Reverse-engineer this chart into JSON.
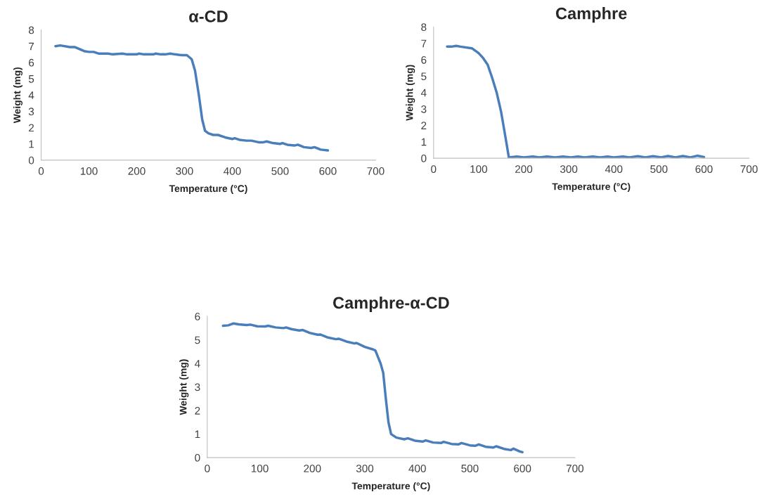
{
  "chart_data": [
    {
      "type": "line",
      "title": "α-CD",
      "xlabel": "Temperature (°C)",
      "ylabel": "Weight (mg)",
      "xlim": [
        0,
        700
      ],
      "xticks": [
        0,
        100,
        200,
        300,
        400,
        500,
        600,
        700
      ],
      "ylim": [
        0,
        8
      ],
      "yticks": [
        0,
        1,
        2,
        3,
        4,
        5,
        6,
        7,
        8
      ],
      "grid": false,
      "marker": "none",
      "line_style": "solid",
      "series": [
        {
          "color": "#4a7ebb",
          "x": [
            30,
            40,
            60,
            70,
            90,
            100,
            110,
            120,
            140,
            150,
            170,
            180,
            200,
            205,
            215,
            235,
            240,
            250,
            260,
            270,
            280,
            295,
            305,
            315,
            322,
            330,
            337,
            343,
            350,
            360,
            370,
            385,
            400,
            405,
            415,
            430,
            440,
            455,
            465,
            472,
            485,
            500,
            505,
            515,
            530,
            537,
            550,
            565,
            572,
            585,
            600
          ],
          "values": [
            7.0,
            7.05,
            6.95,
            6.95,
            6.7,
            6.65,
            6.65,
            6.55,
            6.55,
            6.5,
            6.55,
            6.5,
            6.5,
            6.55,
            6.5,
            6.5,
            6.55,
            6.5,
            6.5,
            6.55,
            6.5,
            6.45,
            6.45,
            6.2,
            5.5,
            4.0,
            2.5,
            1.8,
            1.65,
            1.55,
            1.55,
            1.4,
            1.3,
            1.35,
            1.25,
            1.2,
            1.2,
            1.1,
            1.1,
            1.15,
            1.05,
            1.0,
            1.05,
            0.95,
            0.9,
            0.95,
            0.8,
            0.75,
            0.8,
            0.65,
            0.6
          ]
        }
      ]
    },
    {
      "type": "line",
      "title": "Camphre",
      "xlabel": "Temperature (°C)",
      "ylabel": "Weight (mg)",
      "xlim": [
        0,
        700
      ],
      "xticks": [
        0,
        100,
        200,
        300,
        400,
        500,
        600,
        700
      ],
      "ylim": [
        0,
        8
      ],
      "yticks": [
        0,
        1,
        2,
        3,
        4,
        5,
        6,
        7,
        8
      ],
      "grid": false,
      "marker": "none",
      "line_style": "solid",
      "series": [
        {
          "color": "#4a7ebb",
          "x": [
            30,
            40,
            50,
            60,
            85,
            100,
            110,
            120,
            130,
            140,
            150,
            160,
            167,
            185,
            200,
            220,
            235,
            252,
            270,
            287,
            305,
            320,
            335,
            353,
            370,
            386,
            400,
            420,
            435,
            453,
            470,
            487,
            505,
            520,
            537,
            553,
            570,
            585,
            600
          ],
          "values": [
            6.8,
            6.8,
            6.85,
            6.8,
            6.7,
            6.4,
            6.1,
            5.7,
            4.9,
            4.0,
            2.8,
            1.2,
            0.05,
            0.1,
            0.05,
            0.1,
            0.05,
            0.1,
            0.05,
            0.1,
            0.05,
            0.1,
            0.05,
            0.1,
            0.05,
            0.1,
            0.05,
            0.1,
            0.05,
            0.12,
            0.05,
            0.12,
            0.05,
            0.13,
            0.05,
            0.13,
            0.05,
            0.15,
            0.07
          ]
        }
      ]
    },
    {
      "type": "line",
      "title": "Camphre-α-CD",
      "xlabel": "Temperature (°C)",
      "ylabel": "Weight (mg)",
      "xlim": [
        0,
        700
      ],
      "xticks": [
        0,
        100,
        200,
        300,
        400,
        500,
        600,
        700
      ],
      "ylim": [
        0,
        6
      ],
      "yticks": [
        0,
        1,
        2,
        3,
        4,
        5,
        6
      ],
      "grid": false,
      "marker": "none",
      "line_style": "solid",
      "series": [
        {
          "color": "#4a7ebb",
          "x": [
            30,
            40,
            50,
            60,
            75,
            82,
            95,
            110,
            116,
            130,
            145,
            150,
            160,
            175,
            182,
            195,
            210,
            215,
            230,
            245,
            250,
            265,
            280,
            284,
            300,
            315,
            320,
            330,
            335,
            340,
            345,
            350,
            360,
            375,
            382,
            395,
            410,
            416,
            430,
            445,
            450,
            465,
            478,
            484,
            500,
            510,
            517,
            530,
            545,
            550,
            565,
            578,
            583,
            595,
            600
          ],
          "values": [
            5.6,
            5.62,
            5.7,
            5.66,
            5.63,
            5.65,
            5.58,
            5.57,
            5.6,
            5.53,
            5.5,
            5.53,
            5.46,
            5.4,
            5.42,
            5.3,
            5.22,
            5.23,
            5.1,
            5.03,
            5.05,
            4.93,
            4.85,
            4.87,
            4.7,
            4.6,
            4.55,
            4.0,
            3.6,
            2.5,
            1.5,
            1.0,
            0.85,
            0.78,
            0.82,
            0.72,
            0.68,
            0.73,
            0.64,
            0.62,
            0.67,
            0.58,
            0.56,
            0.62,
            0.52,
            0.5,
            0.56,
            0.46,
            0.43,
            0.48,
            0.37,
            0.32,
            0.38,
            0.26,
            0.23
          ]
        }
      ]
    }
  ]
}
